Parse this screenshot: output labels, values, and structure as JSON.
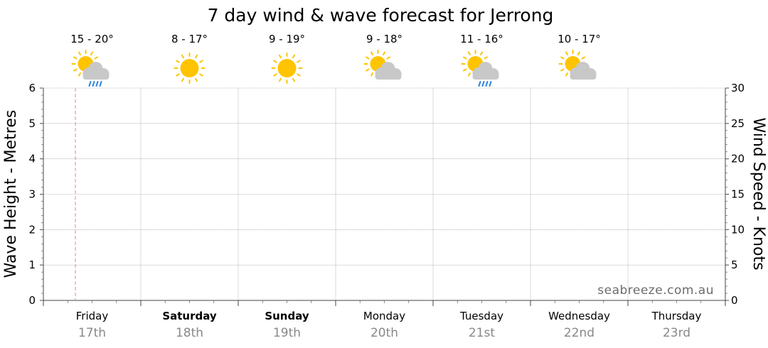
{
  "chart_data": {
    "type": "line",
    "title": "7 day wind & wave forecast for Jerrong",
    "y_left_label": "Wave Height - Metres",
    "y_right_label": "Wind Speed - Knots",
    "y_left_range": [
      0,
      6
    ],
    "y_left_ticks": [
      "0",
      "1",
      "2",
      "3",
      "4",
      "5",
      "6"
    ],
    "y_right_range": [
      0,
      30
    ],
    "y_right_ticks": [
      "0",
      "5",
      "10",
      "15",
      "20",
      "25",
      "30"
    ],
    "grid": true,
    "days": [
      {
        "name": "Friday",
        "date": "17th",
        "bold": false,
        "temp": "15 - 20°",
        "icon": "sun-cloud-rain-icon"
      },
      {
        "name": "Saturday",
        "date": "18th",
        "bold": true,
        "temp": "8 - 17°",
        "icon": "sun-icon"
      },
      {
        "name": "Sunday",
        "date": "19th",
        "bold": true,
        "temp": "9 - 19°",
        "icon": "sun-icon"
      },
      {
        "name": "Monday",
        "date": "20th",
        "bold": false,
        "temp": "9 - 18°",
        "icon": "sun-cloud-icon"
      },
      {
        "name": "Tuesday",
        "date": "21st",
        "bold": false,
        "temp": "11 - 16°",
        "icon": "sun-cloud-rain-icon"
      },
      {
        "name": "Wednesday",
        "date": "22nd",
        "bold": false,
        "temp": "10 - 17°",
        "icon": "sun-cloud-icon"
      },
      {
        "name": "Thursday",
        "date": "23rd",
        "bold": false,
        "temp": "",
        "icon": ""
      }
    ],
    "wave_series": [],
    "wind_series": []
  },
  "watermark": "seabreeze.com.au",
  "colors": {
    "sun": "#FFC400",
    "cloud": "#C8C8C8",
    "rain": "#2F86E0",
    "now_marker": "#F08080",
    "grid": "#888888"
  }
}
